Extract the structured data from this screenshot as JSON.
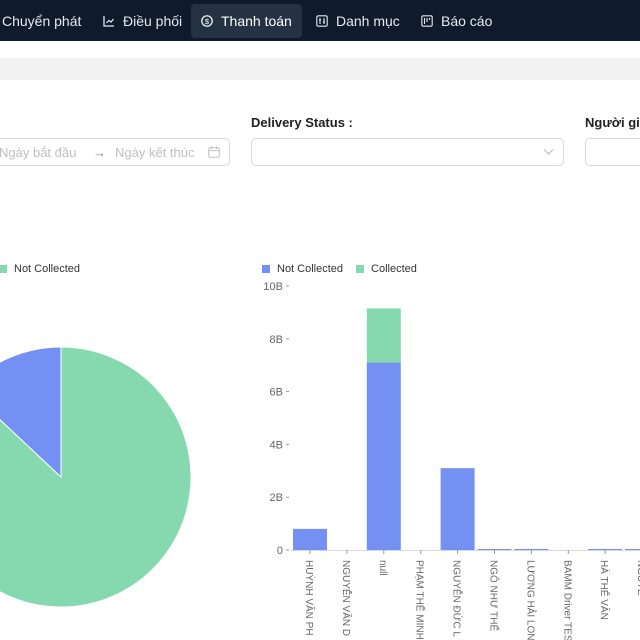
{
  "nav": {
    "items": [
      {
        "label": "Chuyển phát",
        "icon": "none",
        "active": false
      },
      {
        "label": "Điều phối",
        "icon": "chart-icon",
        "active": false
      },
      {
        "label": "Thanh toán",
        "icon": "dollar-circle-icon",
        "active": true
      },
      {
        "label": "Danh mục",
        "icon": "sliders-icon",
        "active": false
      },
      {
        "label": "Báo cáo",
        "icon": "report-icon",
        "active": false
      }
    ]
  },
  "filters": {
    "date_start_placeholder": "Ngày bắt đầu",
    "date_arrow": "→",
    "date_end_placeholder": "Ngày kết thúc",
    "delivery_status_label": "Delivery Status :",
    "third_label": "Người gia"
  },
  "colors": {
    "not_collected": "#7390f2",
    "collected": "#86d9ae",
    "nav_bg": "#0f1b2d"
  },
  "pie": {
    "legend": [
      {
        "name": "Not Collected",
        "color": "#86d9ae"
      }
    ]
  },
  "chart_data": [
    {
      "type": "pie",
      "series": [
        {
          "name": "Collected",
          "value": 87
        },
        {
          "name": "Not Collected",
          "value": 13
        }
      ]
    },
    {
      "type": "bar",
      "stacked": true,
      "legend": [
        "Not Collected",
        "Collected"
      ],
      "categories": [
        "HUỲNH VĂN PH",
        "NGUYỄN VĂN D",
        "null",
        "PHẠM THẾ MINH",
        "NGUYỄN ĐỨC L",
        "NGÔ NHƯ THẾ",
        "LƯƠNG HẢI LON",
        "BAMM Driver TES",
        "HÀ THẾ VÂN",
        "NGUYỄ"
      ],
      "yticks": [
        "0",
        "2B",
        "4B",
        "6B",
        "8B",
        "10B"
      ],
      "ylim": [
        0,
        10
      ],
      "series": [
        {
          "name": "Not Collected",
          "values": [
            0.8,
            0,
            7.1,
            0,
            3.1,
            0.02,
            0.04,
            0,
            0.04,
            0.03
          ]
        },
        {
          "name": "Collected",
          "values": [
            0,
            0,
            2.05,
            0,
            0,
            0,
            0,
            0,
            0,
            0
          ]
        }
      ]
    }
  ]
}
